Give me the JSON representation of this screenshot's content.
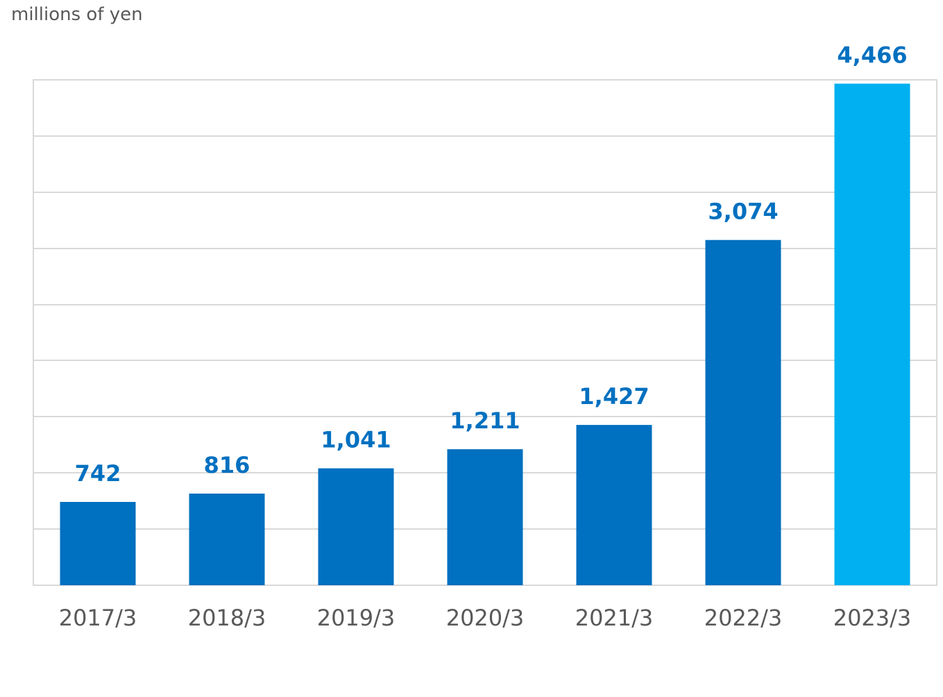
{
  "chart_data": {
    "type": "bar",
    "ylabel": "millions of yen",
    "categories": [
      "2017/3",
      "2018/3",
      "2019/3",
      "2020/3",
      "2021/3",
      "2022/3",
      "2023/3"
    ],
    "values": [
      742,
      816,
      1041,
      1211,
      1427,
      3074,
      4466
    ],
    "value_labels": [
      "742",
      "816",
      "1,041",
      "1,211",
      "1,427",
      "3,074",
      "4,466"
    ],
    "ylim": [
      0,
      4500
    ],
    "y_gridline_step": 500,
    "grid": true,
    "bar_color": "#0070c0",
    "highlight_color": "#00b0f0",
    "highlight_index": 6,
    "label_color": "#0070c0"
  }
}
